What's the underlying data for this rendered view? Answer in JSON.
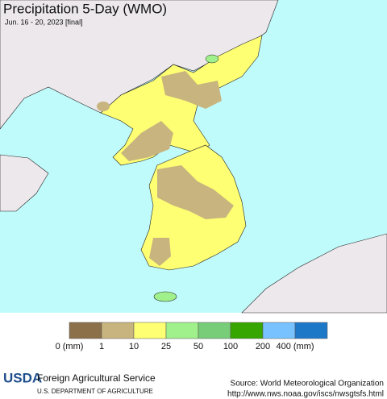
{
  "header": {
    "title": "Precipitation 5-Day (WMO)",
    "subtitle": "Jun. 16 - 20, 2023 [final]"
  },
  "legend": {
    "colors": [
      "#8b7049",
      "#c8b47e",
      "#ffff73",
      "#a0f08c",
      "#78cd78",
      "#37a600",
      "#78c3ff",
      "#1e78c8"
    ],
    "labels": [
      "0 (mm)",
      "1",
      "10",
      "25",
      "50",
      "100",
      "200",
      "400 (mm)"
    ]
  },
  "footer": {
    "logo": "USDA",
    "agency": "Foreign Agricultural Service",
    "department": "U.S. DEPARTMENT OF AGRICULTURE",
    "source": "Source: World Meteorological Organization",
    "url": "http://www.nws.noaa.gov/iscs/nwsgtsfs.html"
  }
}
